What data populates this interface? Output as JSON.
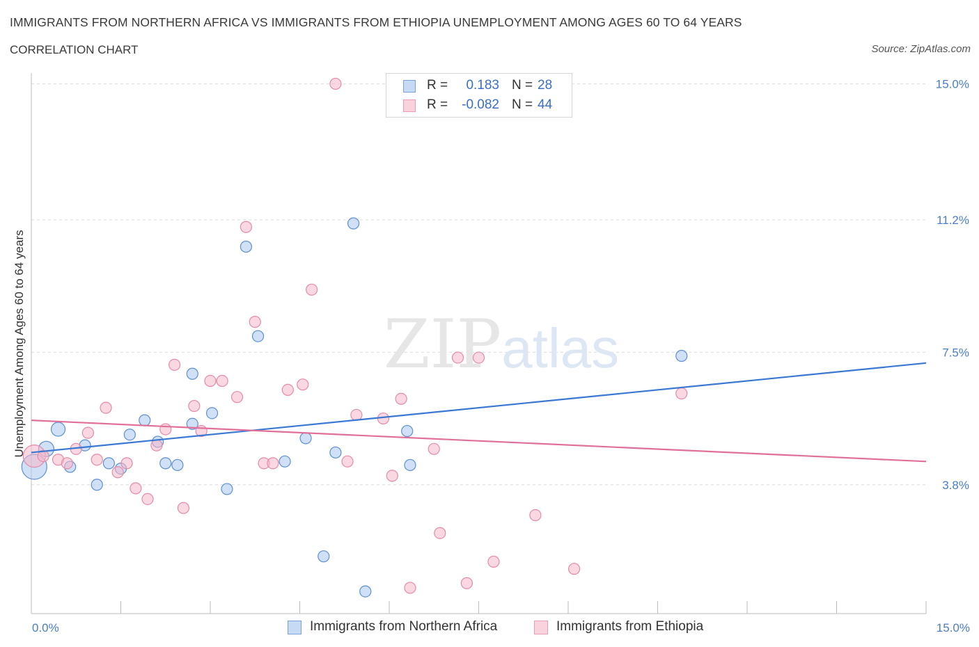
{
  "header": {
    "title": "IMMIGRANTS FROM NORTHERN AFRICA VS IMMIGRANTS FROM ETHIOPIA UNEMPLOYMENT AMONG AGES 60 TO 64 YEARS",
    "subtitle": "CORRELATION CHART",
    "source": "Source: ZipAtlas.com"
  },
  "legend": {
    "rows": [
      {
        "r_label": "R =",
        "r_value": "0.183",
        "n_label": "N =",
        "n_value": "28",
        "color": "#a9c6ee"
      },
      {
        "r_label": "R =",
        "r_value": "-0.082",
        "n_label": "N =",
        "n_value": "44",
        "color": "#f5b8cb"
      }
    ]
  },
  "bottom_legend": {
    "series_a": "Immigrants from Northern Africa",
    "series_b": "Immigrants from Ethiopia"
  },
  "watermark": {
    "part1": "ZIP",
    "part2": "atlas"
  },
  "chart_data": {
    "type": "scatter",
    "title": "IMMIGRANTS FROM NORTHERN AFRICA VS IMMIGRANTS FROM ETHIOPIA UNEMPLOYMENT AMONG AGES 60 TO 64 YEARS",
    "xlabel": "",
    "ylabel": "Unemployment Among Ages 60 to 64 years",
    "xlim": [
      0,
      15
    ],
    "ylim": [
      0.2,
      15.3
    ],
    "x_tick_labels": [
      "0.0%",
      "15.0%"
    ],
    "y_ticks": [
      3.8,
      7.5,
      11.2,
      15.0
    ],
    "y_tick_labels": [
      "3.8%",
      "7.5%",
      "11.2%",
      "15.0%"
    ],
    "grid": true,
    "colors": {
      "series_a": "#3a78d4",
      "series_b": "#e0709a",
      "point_a": "#a9c6ee",
      "point_b": "#f5b8cb"
    },
    "series": [
      {
        "name": "Immigrants from Northern Africa",
        "points": [
          [
            0.05,
            4.3,
            18
          ],
          [
            0.25,
            4.8,
            11
          ],
          [
            0.45,
            5.35,
            10
          ],
          [
            0.65,
            4.3,
            8
          ],
          [
            0.9,
            4.9,
            8
          ],
          [
            1.1,
            3.8,
            8
          ],
          [
            1.3,
            4.4,
            8
          ],
          [
            1.5,
            4.25,
            8
          ],
          [
            1.65,
            5.2,
            8
          ],
          [
            1.9,
            5.6,
            8
          ],
          [
            2.12,
            5.0,
            8
          ],
          [
            2.25,
            4.4,
            8
          ],
          [
            2.45,
            4.35,
            8
          ],
          [
            2.7,
            6.9,
            8
          ],
          [
            2.7,
            5.5,
            8
          ],
          [
            3.03,
            5.8,
            8
          ],
          [
            3.28,
            3.68,
            8
          ],
          [
            3.6,
            10.45,
            8
          ],
          [
            3.8,
            7.95,
            8
          ],
          [
            4.25,
            4.45,
            8
          ],
          [
            4.6,
            5.1,
            8
          ],
          [
            4.9,
            1.8,
            8
          ],
          [
            5.1,
            4.7,
            8
          ],
          [
            5.4,
            11.1,
            8
          ],
          [
            5.6,
            0.82,
            8
          ],
          [
            6.3,
            5.3,
            8
          ],
          [
            6.35,
            4.35,
            8
          ],
          [
            10.9,
            7.4,
            8
          ]
        ]
      },
      {
        "name": "Immigrants from Ethiopia",
        "points": [
          [
            0.05,
            4.6,
            16
          ],
          [
            0.2,
            4.6,
            8
          ],
          [
            0.45,
            4.5,
            8
          ],
          [
            0.6,
            4.4,
            8
          ],
          [
            0.75,
            4.8,
            8
          ],
          [
            0.95,
            5.25,
            8
          ],
          [
            1.1,
            4.5,
            8
          ],
          [
            1.25,
            5.95,
            8
          ],
          [
            1.45,
            4.15,
            8
          ],
          [
            1.6,
            4.4,
            8
          ],
          [
            1.75,
            3.7,
            8
          ],
          [
            1.95,
            3.4,
            8
          ],
          [
            2.1,
            4.9,
            8
          ],
          [
            2.25,
            5.35,
            8
          ],
          [
            2.4,
            7.15,
            8
          ],
          [
            2.55,
            3.15,
            8
          ],
          [
            2.73,
            6.0,
            8
          ],
          [
            2.85,
            5.3,
            8
          ],
          [
            3.0,
            6.7,
            8
          ],
          [
            3.2,
            6.7,
            8
          ],
          [
            3.45,
            6.25,
            8
          ],
          [
            3.6,
            11.0,
            8
          ],
          [
            3.75,
            8.35,
            8
          ],
          [
            3.9,
            4.4,
            8
          ],
          [
            4.05,
            4.4,
            8
          ],
          [
            4.3,
            6.45,
            8
          ],
          [
            4.55,
            6.6,
            8
          ],
          [
            4.7,
            9.25,
            8
          ],
          [
            5.1,
            15.0,
            8
          ],
          [
            5.3,
            4.45,
            8
          ],
          [
            5.45,
            5.75,
            8
          ],
          [
            5.9,
            5.65,
            8
          ],
          [
            6.05,
            4.05,
            8
          ],
          [
            6.2,
            6.2,
            8
          ],
          [
            6.35,
            0.92,
            8
          ],
          [
            6.75,
            4.8,
            8
          ],
          [
            6.85,
            2.45,
            8
          ],
          [
            7.15,
            7.35,
            8
          ],
          [
            7.3,
            1.05,
            8
          ],
          [
            7.5,
            7.35,
            8
          ],
          [
            7.75,
            1.65,
            8
          ],
          [
            8.45,
            2.95,
            8
          ],
          [
            9.1,
            1.45,
            8
          ],
          [
            10.9,
            6.35,
            8
          ]
        ]
      }
    ],
    "trendlines": [
      {
        "series": "Immigrants from Northern Africa",
        "x": [
          0,
          15
        ],
        "y": [
          4.7,
          7.2
        ]
      },
      {
        "series": "Immigrants from Ethiopia",
        "x": [
          0,
          15
        ],
        "y": [
          5.6,
          4.45
        ]
      }
    ]
  }
}
